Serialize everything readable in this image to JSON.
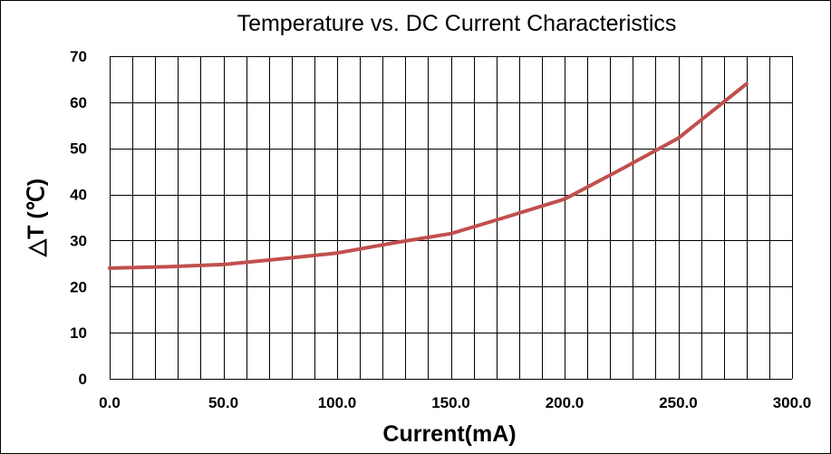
{
  "chart_data": {
    "type": "line",
    "title": "Temperature vs. DC Current Characteristics",
    "xlabel": "Current(mA)",
    "ylabel": "△T (℃)",
    "xlim": [
      0,
      300
    ],
    "ylim": [
      0,
      70
    ],
    "xticks": [
      "0.0",
      "50.0",
      "100.0",
      "150.0",
      "200.0",
      "250.0",
      "300.0"
    ],
    "yticks": [
      "0",
      "10",
      "20",
      "30",
      "40",
      "50",
      "60",
      "70"
    ],
    "x_minor_step": 10,
    "y_minor_step": 10,
    "grid": true,
    "series": [
      {
        "color": "#c0504d",
        "x": [
          0,
          25,
          50,
          75,
          100,
          125,
          150,
          175,
          200,
          225,
          250,
          280
        ],
        "y": [
          24,
          24.3,
          24.8,
          26,
          27.3,
          29.5,
          31.5,
          35.2,
          39,
          45.5,
          52.2,
          64
        ]
      }
    ]
  }
}
